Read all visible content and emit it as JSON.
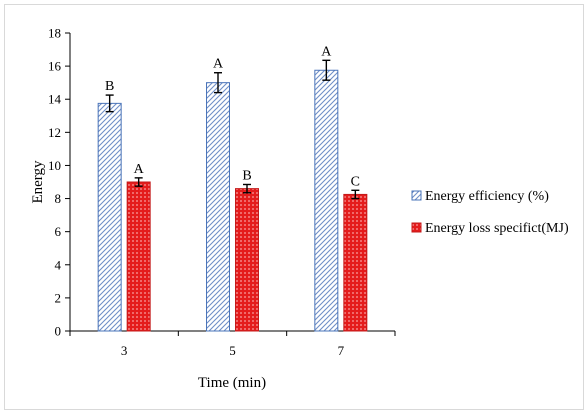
{
  "chart_data": {
    "type": "bar",
    "categories": [
      "3",
      "5",
      "7"
    ],
    "series": [
      {
        "name": "Energy efficiency (%)",
        "values": [
          13.75,
          15.0,
          15.75
        ],
        "errors": [
          0.5,
          0.6,
          0.6
        ],
        "letters": [
          "B",
          "A",
          "A"
        ],
        "color": "#4a74b9",
        "pattern": "diagonal-hatch"
      },
      {
        "name": "Energy loss specifict(MJ)",
        "values": [
          9.0,
          8.6,
          8.25
        ],
        "errors": [
          0.25,
          0.25,
          0.25
        ],
        "letters": [
          "A",
          "B",
          "C"
        ],
        "color": "#e02020",
        "pattern": "dotted"
      }
    ],
    "title": "",
    "xlabel": "Time (min)",
    "ylabel": "Energy",
    "ylim": [
      0,
      18
    ],
    "yticks": [
      "0",
      "2",
      "4",
      "6",
      "8",
      "10",
      "12",
      "14",
      "16",
      "18"
    ],
    "grid": false,
    "legend_position": "right"
  }
}
